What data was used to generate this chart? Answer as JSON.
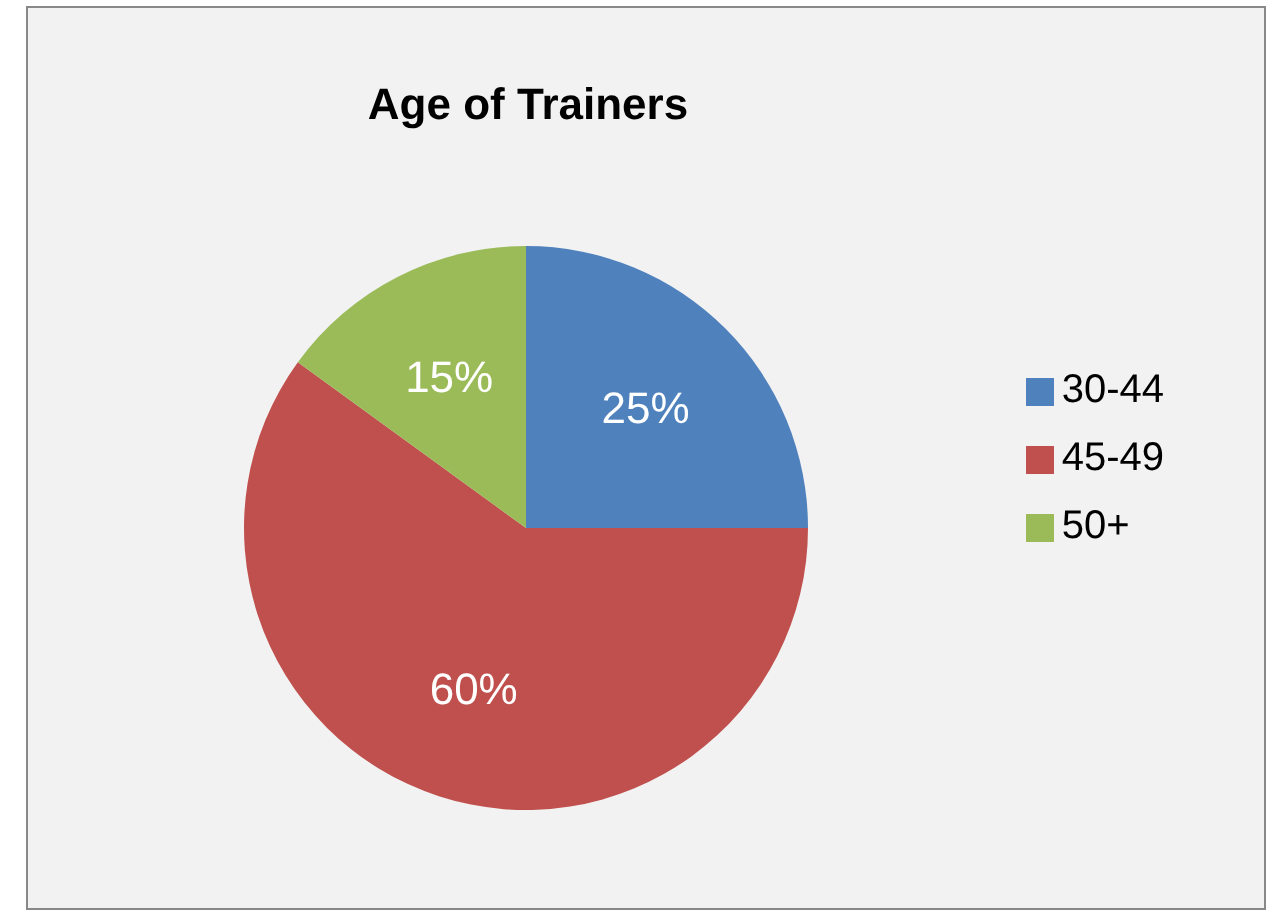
{
  "chart_data": {
    "type": "pie",
    "title": "Age of Trainers",
    "categories": [
      "30-44",
      "45-49",
      "50+"
    ],
    "values": [
      25,
      60,
      15
    ],
    "value_labels": [
      "25%",
      "60%",
      "15%"
    ],
    "colors": [
      "#4f81bd",
      "#c0504d",
      "#9bbb59"
    ],
    "legend": "right"
  }
}
